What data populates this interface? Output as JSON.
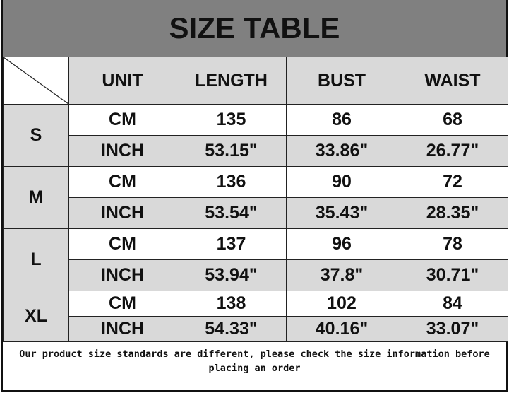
{
  "title": "SIZE TABLE",
  "headers": [
    "UNIT",
    "LENGTH",
    "BUST",
    "WAIST"
  ],
  "sizes": [
    {
      "size": "S",
      "rows": [
        [
          "CM",
          "135",
          "86",
          "68"
        ],
        [
          "INCH",
          "53.15\"",
          "33.86\"",
          "26.77\""
        ]
      ]
    },
    {
      "size": "M",
      "rows": [
        [
          "CM",
          "136",
          "90",
          "72"
        ],
        [
          "INCH",
          "53.54\"",
          "35.43\"",
          "28.35\""
        ]
      ]
    },
    {
      "size": "L",
      "rows": [
        [
          "CM",
          "137",
          "96",
          "78"
        ],
        [
          "INCH",
          "53.94\"",
          "37.8\"",
          "30.71\""
        ]
      ]
    },
    {
      "size": "XL",
      "rows": [
        [
          "CM",
          "138",
          "102",
          "84"
        ],
        [
          "INCH",
          "54.33\"",
          "40.16\"",
          "33.07\""
        ]
      ]
    }
  ],
  "note": "Our product size standards are different, please check the size information before placing an order",
  "colors": {
    "title_bg": "#808080",
    "cell_gray": "#d9d9d9"
  }
}
